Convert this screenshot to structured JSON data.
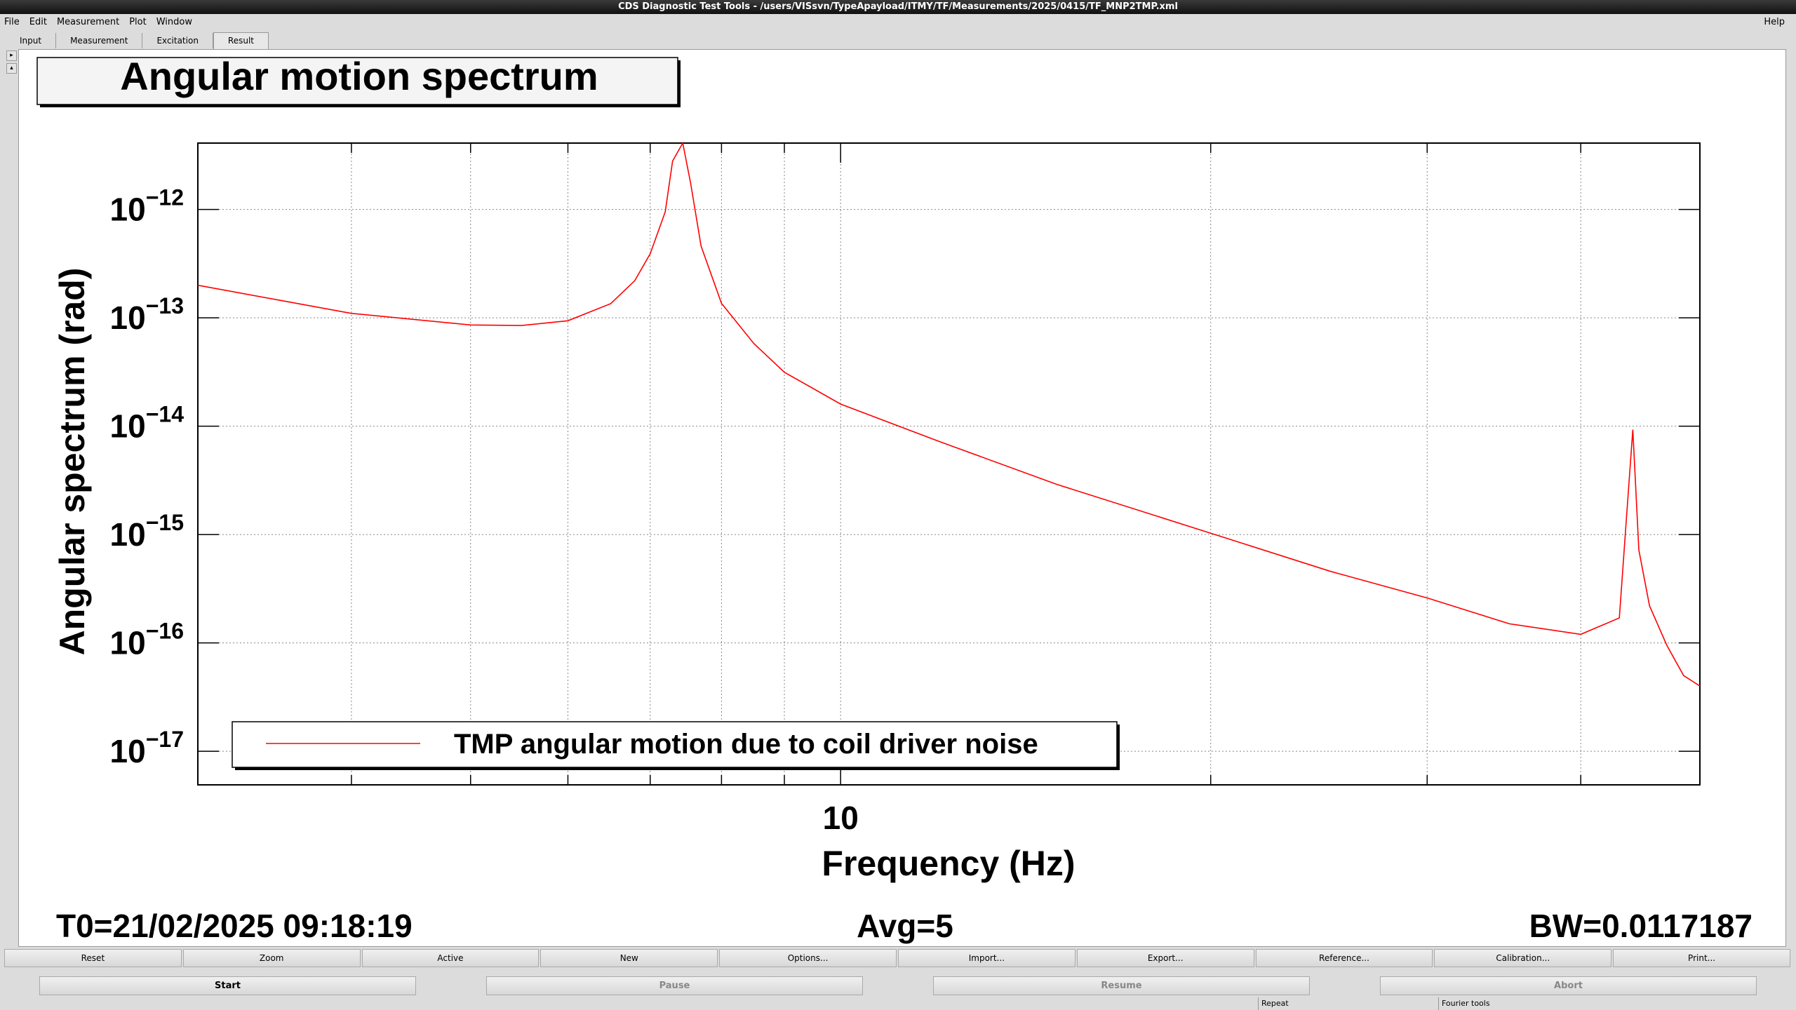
{
  "window": {
    "title": "CDS Diagnostic Test Tools - /users/VISsvn/TypeApayload/ITMY/TF/Measurements/2025/0415/TF_MNP2TMP.xml"
  },
  "menu": [
    "File",
    "Edit",
    "Measurement",
    "Plot",
    "Window"
  ],
  "help": "Help",
  "tabs": [
    "Input",
    "Measurement",
    "Excitation",
    "Result"
  ],
  "chart_data": {
    "type": "line",
    "title": "Angular motion spectrum",
    "xlabel": "Frequency (Hz)",
    "ylabel": "Angular spectrum (rad)",
    "xscale": "log",
    "yscale": "log",
    "grid": true,
    "legend": "bottom-left",
    "xlim": [
      3,
      50
    ],
    "ylim": [
      4.9e-18,
      4.1e-12
    ],
    "xticks": [
      10
    ],
    "xminor_ticks": [
      4,
      5,
      6,
      7,
      8,
      9,
      20,
      30,
      40
    ],
    "yticks": [
      {
        "value": 1e-12,
        "label": "10",
        "exponent": "−12"
      },
      {
        "value": 1e-13,
        "label": "10",
        "exponent": "−13"
      },
      {
        "value": 1e-14,
        "label": "10",
        "exponent": "−14"
      },
      {
        "value": 1e-15,
        "label": "10",
        "exponent": "−15"
      },
      {
        "value": 1e-16,
        "label": "10",
        "exponent": "−16"
      },
      {
        "value": 1e-17,
        "label": "10",
        "exponent": "−17"
      }
    ],
    "x": [
      3,
      3.5,
      4,
      5,
      5.5,
      6,
      6.5,
      6.8,
      7.0,
      7.2,
      7.3,
      7.44,
      7.55,
      7.7,
      8,
      8.5,
      9,
      10,
      12,
      15,
      20,
      25,
      30,
      35,
      40,
      43,
      43.5,
      44.1,
      44.6,
      45.5,
      47,
      48.5,
      50
    ],
    "series": [
      {
        "name": "TMP angular motion due to coil driver noise",
        "color": "#ff0000",
        "values": [
          2e-13,
          1.45e-13,
          1.1e-13,
          8.6e-14,
          8.5e-14,
          9.4e-14,
          1.35e-13,
          2.2e-13,
          3.9e-13,
          9.5e-13,
          2.8e-12,
          4.1e-12,
          1.75e-12,
          4.6e-13,
          1.36e-13,
          5.8e-14,
          3.15e-14,
          1.6e-14,
          7.3e-15,
          2.9e-15,
          1.03e-15,
          4.6e-16,
          2.6e-16,
          1.5e-16,
          1.2e-16,
          1.7e-16,
          1.08e-15,
          9.3e-15,
          7.2e-16,
          2.2e-16,
          9.5e-17,
          5e-17,
          4e-17
        ]
      }
    ]
  },
  "footer": {
    "t0": "T0=21/02/2025 09:18:19",
    "avg": "Avg=5",
    "bw": "BW=0.0117187"
  },
  "buttons": [
    "Reset",
    "Zoom",
    "Active",
    "New",
    "Options...",
    "Import...",
    "Export...",
    "Reference...",
    "Calibration...",
    "Print..."
  ],
  "controls": [
    "Start",
    "Pause",
    "Resume",
    "Abort"
  ],
  "status": [
    "Repeat",
    "Fourier tools"
  ]
}
